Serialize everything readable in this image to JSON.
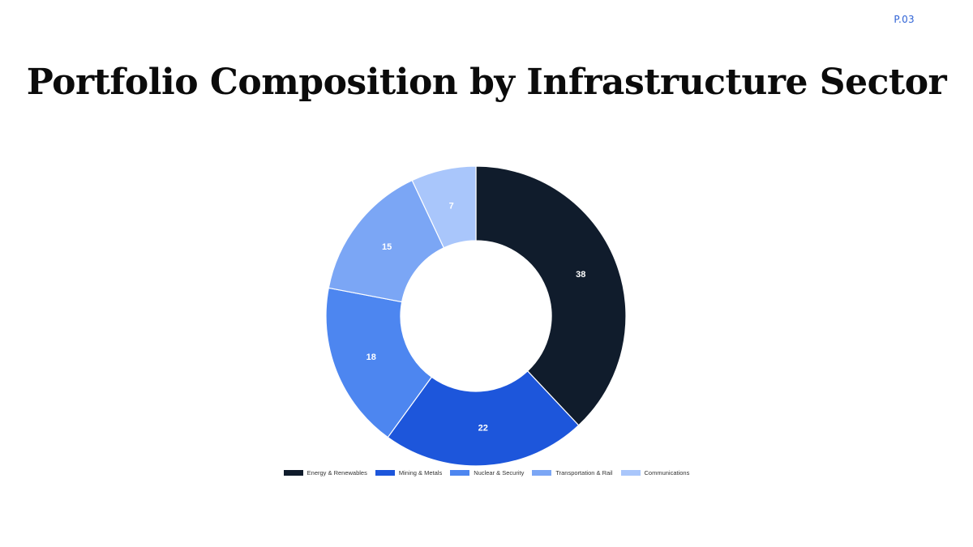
{
  "page": {
    "number": "P.03"
  },
  "header": {
    "title": "Portfolio Composition by Infrastructure Sector"
  },
  "chart_data": {
    "type": "pie",
    "donut": true,
    "title": "",
    "categories": [
      "Energy & Renewables",
      "Mining & Metals",
      "Nuclear & Security",
      "Transportation & Rail",
      "Communications"
    ],
    "values": [
      38,
      22,
      18,
      15,
      7
    ],
    "colors": [
      "#101c2c",
      "#1d56db",
      "#4d86f0",
      "#7ba6f5",
      "#a9c6fb"
    ],
    "data_labels": [
      "38",
      "22",
      "18",
      "15",
      "7"
    ],
    "legend_position": "bottom"
  }
}
